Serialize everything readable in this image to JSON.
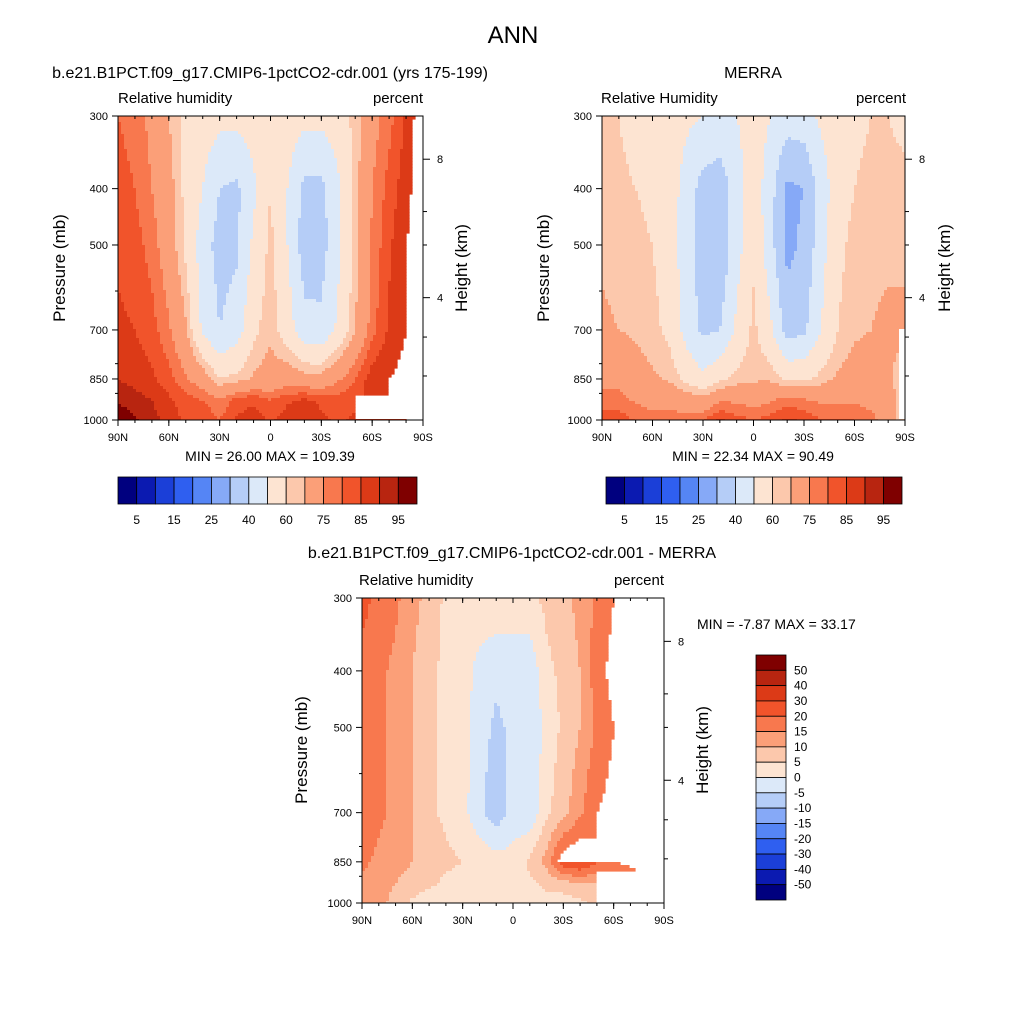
{
  "figure_title": "ANN",
  "chart_data": [
    {
      "type": "heatmap",
      "title": "b.e21.B1PCT.f09_g17.CMIP6-1pctCO2-cdr.001 (yrs 175-199)",
      "left_string": "Relative humidity",
      "right_string": "percent",
      "ylabel": "Pressure (mb)",
      "ylabel_right": "Height (km)",
      "x_ticks": [
        "90N",
        "60N",
        "30N",
        "0",
        "30S",
        "60S",
        "90S"
      ],
      "y_ticks": [
        "300",
        "400",
        "500",
        "700",
        "850",
        "1000"
      ],
      "y_right_ticks": [
        "8",
        "4"
      ],
      "ylim": [
        1000,
        300
      ],
      "y_scale": "log",
      "stats_text": "MIN =  26.00  MAX = 109.39",
      "colorbar": {
        "orientation": "horizontal",
        "labels": [
          "5",
          "15",
          "25",
          "40",
          "60",
          "75",
          "85",
          "95"
        ],
        "colors": [
          "#00007f",
          "#0b1ab1",
          "#1b3fd8",
          "#2f5ff0",
          "#5585f5",
          "#86a9f7",
          "#b5cdf7",
          "#dce9f9",
          "#fde4d2",
          "#fcc8ac",
          "#fb9f78",
          "#f8784e",
          "#f1542b",
          "#dc3a17",
          "#b82510",
          "#7f0000"
        ]
      },
      "field": {
        "lat": [
          90,
          80,
          70,
          60,
          50,
          40,
          30,
          20,
          10,
          0,
          -10,
          -20,
          -30,
          -40,
          -50,
          -60,
          -70,
          -80,
          -90
        ],
        "plev": [
          300,
          400,
          500,
          700,
          850,
          925,
          1000
        ],
        "rh": [
          [
            80,
            78,
            73,
            65,
            58,
            55,
            53,
            53,
            55,
            60,
            56,
            53,
            53,
            56,
            62,
            72,
            78,
            86,
            95
          ],
          [
            82,
            80,
            75,
            68,
            58,
            50,
            40,
            38,
            48,
            60,
            50,
            37,
            37,
            48,
            62,
            75,
            82,
            88,
            95
          ],
          [
            84,
            82,
            78,
            70,
            58,
            45,
            36,
            38,
            52,
            62,
            50,
            35,
            36,
            48,
            62,
            76,
            84,
            90,
            95
          ],
          [
            86,
            85,
            82,
            76,
            66,
            48,
            40,
            45,
            58,
            64,
            55,
            43,
            42,
            52,
            65,
            78,
            86,
            90,
            95
          ],
          [
            90,
            88,
            86,
            82,
            76,
            70,
            60,
            62,
            66,
            68,
            70,
            68,
            68,
            74,
            80,
            88,
            90,
            92,
            95
          ],
          [
            94,
            92,
            90,
            86,
            82,
            80,
            76,
            82,
            84,
            80,
            84,
            86,
            84,
            82,
            84,
            88,
            90,
            92,
            95
          ],
          [
            100,
            96,
            92,
            88,
            84,
            84,
            80,
            86,
            88,
            84,
            88,
            90,
            86,
            84,
            86,
            88,
            88,
            90,
            92
          ]
        ],
        "missing_region": {
          "lat_min": -90,
          "lat_max": -50,
          "p_min": 910,
          "p_max": 1000
        }
      }
    },
    {
      "type": "heatmap",
      "title": "MERRA",
      "left_string": "Relative Humidity",
      "right_string": "percent",
      "ylabel": "Pressure (mb)",
      "ylabel_right": "Height (km)",
      "x_ticks": [
        "90N",
        "60N",
        "30N",
        "0",
        "30S",
        "60S",
        "90S"
      ],
      "y_ticks": [
        "300",
        "400",
        "500",
        "700",
        "850",
        "1000"
      ],
      "y_right_ticks": [
        "8",
        "4"
      ],
      "ylim": [
        1000,
        300
      ],
      "y_scale": "log",
      "stats_text": "MIN =  22.34  MAX =  90.49",
      "colorbar": {
        "orientation": "horizontal",
        "labels": [
          "5",
          "15",
          "25",
          "40",
          "60",
          "75",
          "85",
          "95"
        ],
        "colors": [
          "#00007f",
          "#0b1ab1",
          "#1b3fd8",
          "#2f5ff0",
          "#5585f5",
          "#86a9f7",
          "#b5cdf7",
          "#dce9f9",
          "#fde4d2",
          "#fcc8ac",
          "#fb9f78",
          "#f8784e",
          "#f1542b",
          "#dc3a17",
          "#b82510",
          "#7f0000"
        ]
      },
      "field": {
        "lat": [
          90,
          80,
          70,
          60,
          50,
          40,
          30,
          20,
          10,
          0,
          -10,
          -20,
          -30,
          -40,
          -50,
          -60,
          -70,
          -80,
          -90
        ],
        "plev": [
          300,
          400,
          500,
          700,
          850,
          925,
          1000
        ],
        "rh": [
          [
            62,
            60,
            58,
            56,
            55,
            52,
            50,
            48,
            50,
            55,
            50,
            45,
            46,
            52,
            56,
            58,
            60,
            60,
            58
          ],
          [
            62,
            61,
            60,
            58,
            55,
            46,
            36,
            34,
            45,
            56,
            44,
            28,
            30,
            44,
            56,
            60,
            62,
            62,
            62
          ],
          [
            64,
            63,
            62,
            60,
            56,
            44,
            35,
            32,
            46,
            58,
            44,
            27,
            32,
            46,
            58,
            62,
            64,
            64,
            64
          ],
          [
            66,
            65,
            64,
            62,
            58,
            46,
            38,
            40,
            52,
            62,
            52,
            36,
            38,
            50,
            60,
            64,
            65,
            66,
            66
          ],
          [
            72,
            72,
            68,
            66,
            64,
            58,
            52,
            58,
            62,
            64,
            64,
            58,
            58,
            62,
            66,
            68,
            68,
            66,
            62
          ],
          [
            78,
            78,
            74,
            72,
            72,
            70,
            68,
            74,
            74,
            72,
            74,
            78,
            76,
            74,
            74,
            74,
            72,
            68,
            62
          ],
          [
            82,
            82,
            80,
            78,
            78,
            78,
            80,
            86,
            82,
            80,
            82,
            86,
            84,
            80,
            80,
            80,
            78,
            70,
            60
          ]
        ],
        "missing_region": {
          "lat_min": -90,
          "lat_max": -87,
          "p_min": 700,
          "p_max": 1000
        }
      }
    },
    {
      "type": "heatmap",
      "title": "b.e21.B1PCT.f09_g17.CMIP6-1pctCO2-cdr.001 - MERRA",
      "left_string": "Relative humidity",
      "right_string": "percent",
      "ylabel": "Pressure (mb)",
      "ylabel_right": "Height (km)",
      "x_ticks": [
        "90N",
        "60N",
        "30N",
        "0",
        "30S",
        "60S",
        "90S"
      ],
      "y_ticks": [
        "300",
        "400",
        "500",
        "700",
        "850",
        "1000"
      ],
      "y_right_ticks": [
        "8",
        "4"
      ],
      "ylim": [
        1000,
        300
      ],
      "y_scale": "log",
      "stats_text": "MIN =  -7.87  MAX =  33.17",
      "colorbar": {
        "orientation": "vertical",
        "labels": [
          "50",
          "40",
          "30",
          "20",
          "15",
          "10",
          "5",
          "0",
          "-5",
          "-10",
          "-15",
          "-20",
          "-30",
          "-40",
          "-50"
        ],
        "colors": [
          "#7f0000",
          "#b82510",
          "#dc3a17",
          "#f1542b",
          "#f8784e",
          "#fb9f78",
          "#fcc8ac",
          "#fde4d2",
          "#dce9f9",
          "#b5cdf7",
          "#86a9f7",
          "#5585f5",
          "#2f5ff0",
          "#1b3fd8",
          "#0b1ab1",
          "#00007f"
        ]
      },
      "field": {
        "lat": [
          90,
          80,
          70,
          60,
          50,
          40,
          30,
          20,
          10,
          0,
          -10,
          -20,
          -30,
          -40,
          -50,
          -60,
          -70,
          -80,
          -90
        ],
        "plev": [
          300,
          400,
          500,
          700,
          850,
          925,
          1000
        ],
        "rh": [
          [
            22,
            18,
            16,
            12,
            8,
            4,
            2,
            4,
            4,
            2,
            4,
            6,
            8,
            12,
            16,
            20,
            22,
            24,
            30
          ],
          [
            18,
            16,
            14,
            10,
            6,
            4,
            3,
            -2,
            -4,
            -2,
            -4,
            4,
            6,
            10,
            18,
            22,
            24,
            26,
            30
          ],
          [
            18,
            16,
            14,
            10,
            6,
            4,
            2,
            -3,
            -6,
            -4,
            -5,
            2,
            6,
            10,
            16,
            20,
            22,
            24,
            28
          ],
          [
            18,
            16,
            14,
            10,
            6,
            4,
            2,
            -4,
            -8,
            -3,
            -4,
            4,
            8,
            14,
            20,
            22,
            24,
            26,
            28
          ],
          [
            16,
            14,
            12,
            10,
            8,
            6,
            5,
            4,
            2,
            2,
            6,
            12,
            24,
            26,
            20,
            20,
            22,
            24,
            28
          ],
          [
            14,
            12,
            10,
            8,
            6,
            4,
            3,
            4,
            4,
            4,
            4,
            6,
            8,
            10,
            10,
            12,
            14,
            18,
            24
          ],
          [
            14,
            12,
            8,
            4,
            2,
            1,
            0,
            2,
            4,
            2,
            3,
            4,
            2,
            4,
            6,
            8,
            10,
            14,
            20
          ]
        ],
        "missing_region": {
          "lat_min": -90,
          "lat_max": -50,
          "p_min": 880,
          "p_max": 1000
        }
      }
    }
  ]
}
